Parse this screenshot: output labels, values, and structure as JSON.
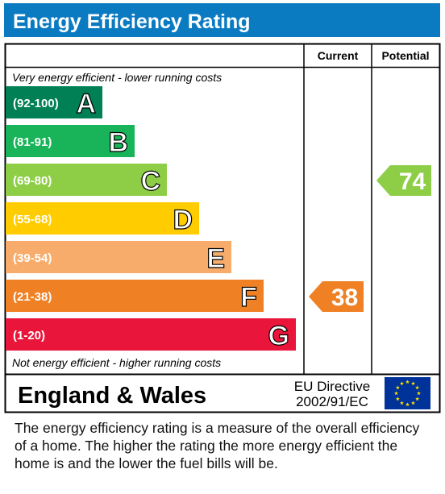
{
  "chart_data": {
    "type": "bar",
    "title": "Energy Efficiency Rating",
    "column_headers": [
      "Current",
      "Potential"
    ],
    "top_note": "Very energy efficient - lower running costs",
    "bottom_note": "Not energy efficient - higher running costs",
    "bands": [
      {
        "range": "(92-100)",
        "letter": "A",
        "color": "#008054"
      },
      {
        "range": "(81-91)",
        "letter": "B",
        "color": "#19b459"
      },
      {
        "range": "(69-80)",
        "letter": "C",
        "color": "#8dce46"
      },
      {
        "range": "(55-68)",
        "letter": "D",
        "color": "#ffcc00"
      },
      {
        "range": "(39-54)",
        "letter": "E",
        "color": "#f7ac6b"
      },
      {
        "range": "(21-38)",
        "letter": "F",
        "color": "#ef8023"
      },
      {
        "range": "(1-20)",
        "letter": "G",
        "color": "#e9153b"
      }
    ],
    "current": {
      "value": 38,
      "band": "F",
      "color": "#ef8023"
    },
    "potential": {
      "value": 74,
      "band": "C",
      "color": "#8dce46"
    },
    "footer": {
      "region": "England & Wales",
      "directive_line1": "EU Directive",
      "directive_line2": "2002/91/EC"
    }
  },
  "description": "The energy efficiency rating is a measure of the overall efficiency of a home.  The higher the rating the more energy efficient the home is and the lower the fuel bills will be.",
  "colors": {
    "title_bar": "#0b7bc1",
    "eu_flag": "#003399",
    "eu_star": "#ffdd00"
  }
}
